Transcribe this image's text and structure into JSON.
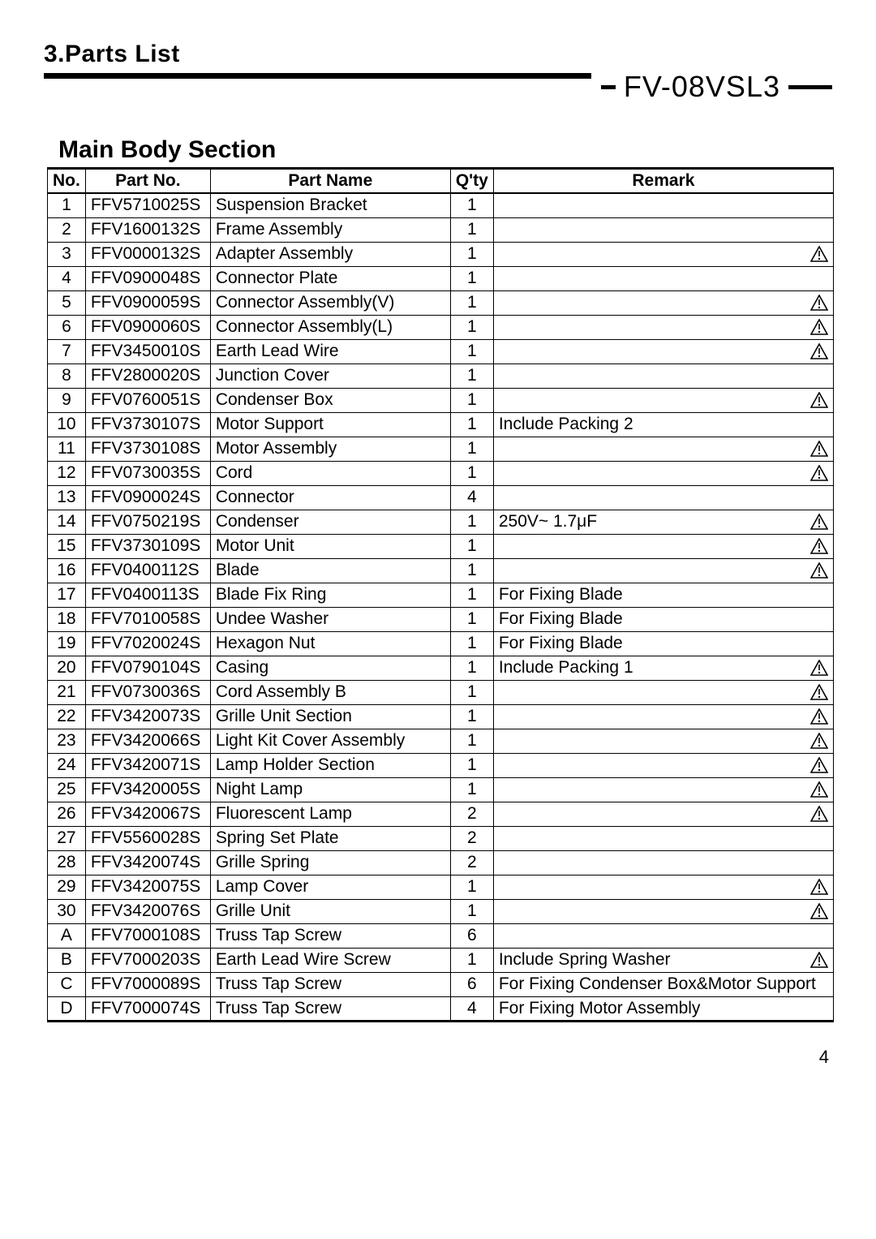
{
  "section_title": "3.Parts List",
  "model": "FV-08VSL3",
  "subsection_title": "Main Body Section",
  "columns": [
    "No.",
    "Part No.",
    "Part Name",
    "Q'ty",
    "Remark"
  ],
  "rows": [
    {
      "no": "1",
      "part": "FFV5710025S",
      "name": "Suspension Bracket",
      "qty": "1",
      "remark": "",
      "warn": false
    },
    {
      "no": "2",
      "part": "FFV1600132S",
      "name": "Frame Assembly",
      "qty": "1",
      "remark": "",
      "warn": false
    },
    {
      "no": "3",
      "part": "FFV0000132S",
      "name": "Adapter Assembly",
      "qty": "1",
      "remark": "",
      "warn": true
    },
    {
      "no": "4",
      "part": "FFV0900048S",
      "name": "Connector Plate",
      "qty": "1",
      "remark": "",
      "warn": false
    },
    {
      "no": "5",
      "part": "FFV0900059S",
      "name": "Connector Assembly(V)",
      "qty": "1",
      "remark": "",
      "warn": true
    },
    {
      "no": "6",
      "part": "FFV0900060S",
      "name": "Connector Assembly(L)",
      "qty": "1",
      "remark": "",
      "warn": true
    },
    {
      "no": "7",
      "part": "FFV3450010S",
      "name": "Earth Lead Wire",
      "qty": "1",
      "remark": "",
      "warn": true
    },
    {
      "no": "8",
      "part": "FFV2800020S",
      "name": "Junction Cover",
      "qty": "1",
      "remark": "",
      "warn": false
    },
    {
      "no": "9",
      "part": "FFV0760051S",
      "name": "Condenser Box",
      "qty": "1",
      "remark": "",
      "warn": true
    },
    {
      "no": "10",
      "part": "FFV3730107S",
      "name": "Motor Support",
      "qty": "1",
      "remark": "Include Packing 2",
      "warn": false
    },
    {
      "no": "11",
      "part": "FFV3730108S",
      "name": "Motor Assembly",
      "qty": "1",
      "remark": "",
      "warn": true
    },
    {
      "no": "12",
      "part": "FFV0730035S",
      "name": "Cord",
      "qty": "1",
      "remark": "",
      "warn": true
    },
    {
      "no": "13",
      "part": "FFV0900024S",
      "name": "Connector",
      "qty": "4",
      "remark": "",
      "warn": false
    },
    {
      "no": "14",
      "part": "FFV0750219S",
      "name": "Condenser",
      "qty": "1",
      "remark": "250V~ 1.7μF",
      "warn": true
    },
    {
      "no": "15",
      "part": "FFV3730109S",
      "name": "Motor Unit",
      "qty": "1",
      "remark": "",
      "warn": true
    },
    {
      "no": "16",
      "part": "FFV0400112S",
      "name": "Blade",
      "qty": "1",
      "remark": "",
      "warn": true
    },
    {
      "no": "17",
      "part": "FFV0400113S",
      "name": "Blade Fix Ring",
      "qty": "1",
      "remark": "For Fixing Blade",
      "warn": false
    },
    {
      "no": "18",
      "part": "FFV7010058S",
      "name": "Undee Washer",
      "qty": "1",
      "remark": "For Fixing Blade",
      "warn": false
    },
    {
      "no": "19",
      "part": "FFV7020024S",
      "name": "Hexagon Nut",
      "qty": "1",
      "remark": "For Fixing Blade",
      "warn": false
    },
    {
      "no": "20",
      "part": "FFV0790104S",
      "name": "Casing",
      "qty": "1",
      "remark": "Include Packing 1",
      "warn": true
    },
    {
      "no": "21",
      "part": "FFV0730036S",
      "name": "Cord Assembly B",
      "qty": "1",
      "remark": "",
      "warn": true
    },
    {
      "no": "22",
      "part": "FFV3420073S",
      "name": "Grille Unit Section",
      "qty": "1",
      "remark": "",
      "warn": true
    },
    {
      "no": "23",
      "part": "FFV3420066S",
      "name": "Light Kit Cover Assembly",
      "qty": "1",
      "remark": "",
      "warn": true
    },
    {
      "no": "24",
      "part": "FFV3420071S",
      "name": "Lamp Holder Section",
      "qty": "1",
      "remark": "",
      "warn": true
    },
    {
      "no": "25",
      "part": "FFV3420005S",
      "name": "Night Lamp",
      "qty": "1",
      "remark": "",
      "warn": true
    },
    {
      "no": "26",
      "part": "FFV3420067S",
      "name": "Fluorescent Lamp",
      "qty": "2",
      "remark": "",
      "warn": true
    },
    {
      "no": "27",
      "part": "FFV5560028S",
      "name": "Spring Set Plate",
      "qty": "2",
      "remark": "",
      "warn": false
    },
    {
      "no": "28",
      "part": "FFV3420074S",
      "name": "Grille Spring",
      "qty": "2",
      "remark": "",
      "warn": false
    },
    {
      "no": "29",
      "part": "FFV3420075S",
      "name": "Lamp Cover",
      "qty": "1",
      "remark": "",
      "warn": true
    },
    {
      "no": "30",
      "part": "FFV3420076S",
      "name": "Grille Unit",
      "qty": "1",
      "remark": "",
      "warn": true
    },
    {
      "no": "A",
      "part": "FFV7000108S",
      "name": "Truss Tap Screw",
      "qty": "6",
      "remark": "",
      "warn": false
    },
    {
      "no": "B",
      "part": "FFV7000203S",
      "name": "Earth Lead Wire Screw",
      "qty": "1",
      "remark": "Include Spring Washer",
      "warn": true
    },
    {
      "no": "C",
      "part": "FFV7000089S",
      "name": "Truss Tap Screw",
      "qty": "6",
      "remark": "For Fixing Condenser Box&Motor Support",
      "warn": false
    },
    {
      "no": "D",
      "part": "FFV7000074S",
      "name": "Truss Tap Screw",
      "qty": "4",
      "remark": "For Fixing Motor Assembly",
      "warn": false
    }
  ],
  "page_number": "4",
  "colors": {
    "text": "#000000",
    "background": "#ffffff",
    "rule": "#000000"
  },
  "typography": {
    "section_title_fontsize": 30,
    "model_fontsize": 36,
    "subsection_title_fontsize": 30,
    "table_fontsize": 21,
    "page_number_fontsize": 22,
    "font_family": "Arial"
  },
  "icon": {
    "warning_svg_stroke": "#000000",
    "warning_svg_width": 22,
    "warning_svg_height": 20
  }
}
